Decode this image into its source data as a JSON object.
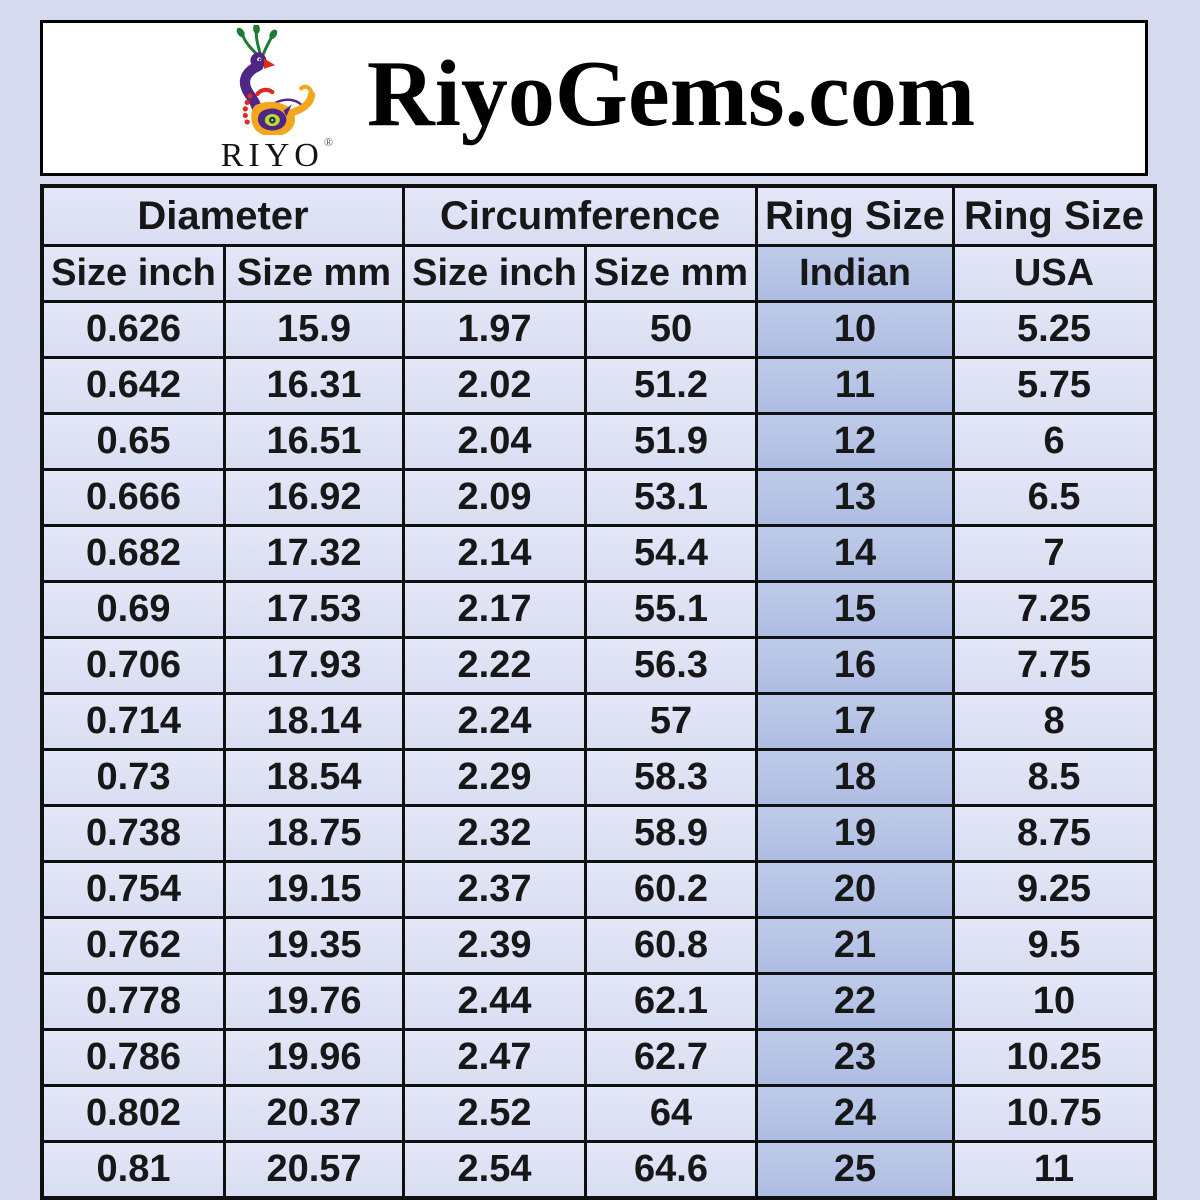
{
  "header": {
    "brand": "RiyoGems.com",
    "logo": {
      "wordmark": "RIYO",
      "registered_mark": "®"
    }
  },
  "chart_data": {
    "type": "table",
    "group_headers": [
      {
        "label": "Diameter",
        "span": 2
      },
      {
        "label": "Circumference",
        "span": 2
      },
      {
        "label": "Ring Size",
        "span": 1
      },
      {
        "label": "Ring Size",
        "span": 1
      }
    ],
    "sub_headers": [
      "Size inch",
      "Size mm",
      "Size inch",
      "Size mm",
      "Indian",
      "USA"
    ],
    "highlight_column_index": 4,
    "rows": [
      [
        "0.626",
        "15.9",
        "1.97",
        "50",
        "10",
        "5.25"
      ],
      [
        "0.642",
        "16.31",
        "2.02",
        "51.2",
        "11",
        "5.75"
      ],
      [
        "0.65",
        "16.51",
        "2.04",
        "51.9",
        "12",
        "6"
      ],
      [
        "0.666",
        "16.92",
        "2.09",
        "53.1",
        "13",
        "6.5"
      ],
      [
        "0.682",
        "17.32",
        "2.14",
        "54.4",
        "14",
        "7"
      ],
      [
        "0.69",
        "17.53",
        "2.17",
        "55.1",
        "15",
        "7.25"
      ],
      [
        "0.706",
        "17.93",
        "2.22",
        "56.3",
        "16",
        "7.75"
      ],
      [
        "0.714",
        "18.14",
        "2.24",
        "57",
        "17",
        "8"
      ],
      [
        "0.73",
        "18.54",
        "2.29",
        "58.3",
        "18",
        "8.5"
      ],
      [
        "0.738",
        "18.75",
        "2.32",
        "58.9",
        "19",
        "8.75"
      ],
      [
        "0.754",
        "19.15",
        "2.37",
        "60.2",
        "20",
        "9.25"
      ],
      [
        "0.762",
        "19.35",
        "2.39",
        "60.8",
        "21",
        "9.5"
      ],
      [
        "0.778",
        "19.76",
        "2.44",
        "62.1",
        "22",
        "10"
      ],
      [
        "0.786",
        "19.96",
        "2.47",
        "62.7",
        "23",
        "10.25"
      ],
      [
        "0.802",
        "20.37",
        "2.52",
        "64",
        "24",
        "10.75"
      ],
      [
        "0.81",
        "20.57",
        "2.54",
        "64.6",
        "25",
        "11"
      ]
    ]
  },
  "colors": {
    "page_background": "#d5daef",
    "header_background": "#ffffff",
    "cell_background": "#dde2f4",
    "highlight_column_background": "#b5c3e6",
    "grid_line": "#101010",
    "text": "#171717",
    "logo_purple": "#4f2585",
    "logo_orange": "#f2a71f",
    "logo_green": "#1e7b33",
    "logo_red": "#e02a1f"
  }
}
